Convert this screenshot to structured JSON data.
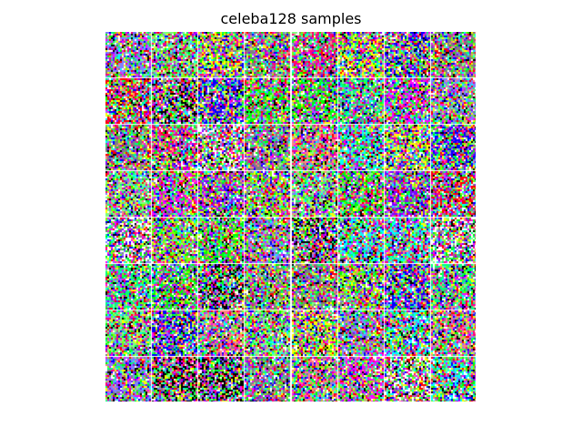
{
  "figure": {
    "title": "celeba128 samples"
  },
  "grid": {
    "rows": 8,
    "cols": 8,
    "content": "random-noise-rgb",
    "separator_color": "#ffffff",
    "palette": [
      "#ff0000",
      "#00ff00",
      "#0000ff",
      "#ffff00",
      "#ff00ff",
      "#00ffff",
      "#ffffff",
      "#000000",
      "#80ff80",
      "#ff8080",
      "#8080ff",
      "#00ff80",
      "#80ff00",
      "#ff0080",
      "#8000ff",
      "#808080"
    ]
  }
}
